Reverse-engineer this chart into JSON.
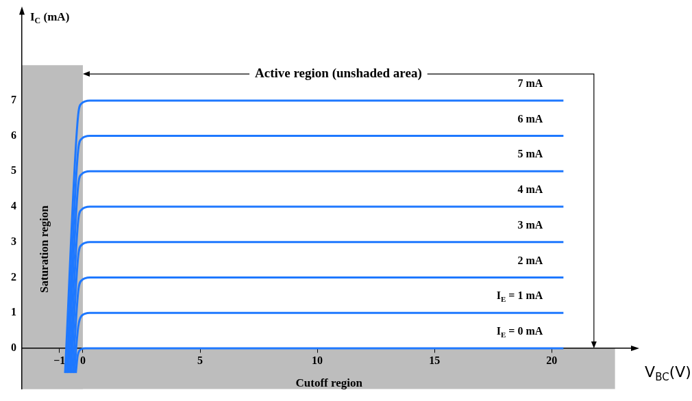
{
  "chart_data": {
    "type": "line",
    "xlabel": "V$_{BC}$(V)",
    "ylabel": "I$_{C}$ (mA)",
    "xlim": [
      -2.6,
      23.5
    ],
    "ylim": [
      -1.15,
      9.5
    ],
    "xticks": [
      -1,
      0,
      5,
      10,
      15,
      20
    ],
    "yticks": [
      0,
      1,
      2,
      3,
      4,
      5,
      6,
      7
    ],
    "grid": false,
    "legend": false,
    "marker": "none",
    "line_style": "solid",
    "series": [
      {
        "name": "I$_{E}$ = 0 mA",
        "color": "#1e78ff",
        "x": [
          -0.3,
          -0.22,
          -0.05,
          0.1,
          20.5
        ],
        "values": [
          -0.7,
          -0.2,
          -0.02,
          0,
          0
        ]
      },
      {
        "name": "I$_{E}$ = 1 mA",
        "color": "#1e78ff",
        "x": [
          -0.37,
          -0.2,
          -0.05,
          0.3,
          20.5
        ],
        "values": [
          -0.7,
          0.6,
          0.92,
          1,
          1
        ]
      },
      {
        "name": "2 mA",
        "color": "#1e78ff",
        "x": [
          -0.43,
          -0.2,
          -0.05,
          0.3,
          20.5
        ],
        "values": [
          -0.7,
          1.6,
          1.92,
          2,
          2
        ]
      },
      {
        "name": "3 mA",
        "color": "#1e78ff",
        "x": [
          -0.5,
          -0.2,
          -0.05,
          0.3,
          20.5
        ],
        "values": [
          -0.7,
          2.6,
          2.92,
          3,
          3
        ]
      },
      {
        "name": "4 mA",
        "color": "#1e78ff",
        "x": [
          -0.56,
          -0.2,
          -0.05,
          0.3,
          20.5
        ],
        "values": [
          -0.7,
          3.6,
          3.92,
          4,
          4
        ]
      },
      {
        "name": "5 mA",
        "color": "#1e78ff",
        "x": [
          -0.63,
          -0.2,
          -0.05,
          0.3,
          20.5
        ],
        "values": [
          -0.7,
          4.6,
          4.92,
          5,
          5
        ]
      },
      {
        "name": "6 mA",
        "color": "#1e78ff",
        "x": [
          -0.69,
          -0.2,
          -0.05,
          0.3,
          20.5
        ],
        "values": [
          -0.7,
          5.6,
          5.92,
          6,
          6
        ]
      },
      {
        "name": "7 mA",
        "color": "#1e78ff",
        "x": [
          -0.76,
          -0.2,
          -0.05,
          0.3,
          20.5
        ],
        "values": [
          -0.7,
          6.6,
          6.92,
          7,
          7
        ]
      }
    ],
    "bands": [
      {
        "axis": "x",
        "from": -2.6,
        "to": 0,
        "label": "Saturation region",
        "color": "#bdbdbd"
      },
      {
        "axis": "y",
        "from": -1.15,
        "to": 0,
        "label": "Cutoff region",
        "color": "#bdbdbd"
      }
    ],
    "annotations": [
      {
        "text": "Active region (unshaded area)",
        "x": 0,
        "y": 7.75
      }
    ]
  }
}
